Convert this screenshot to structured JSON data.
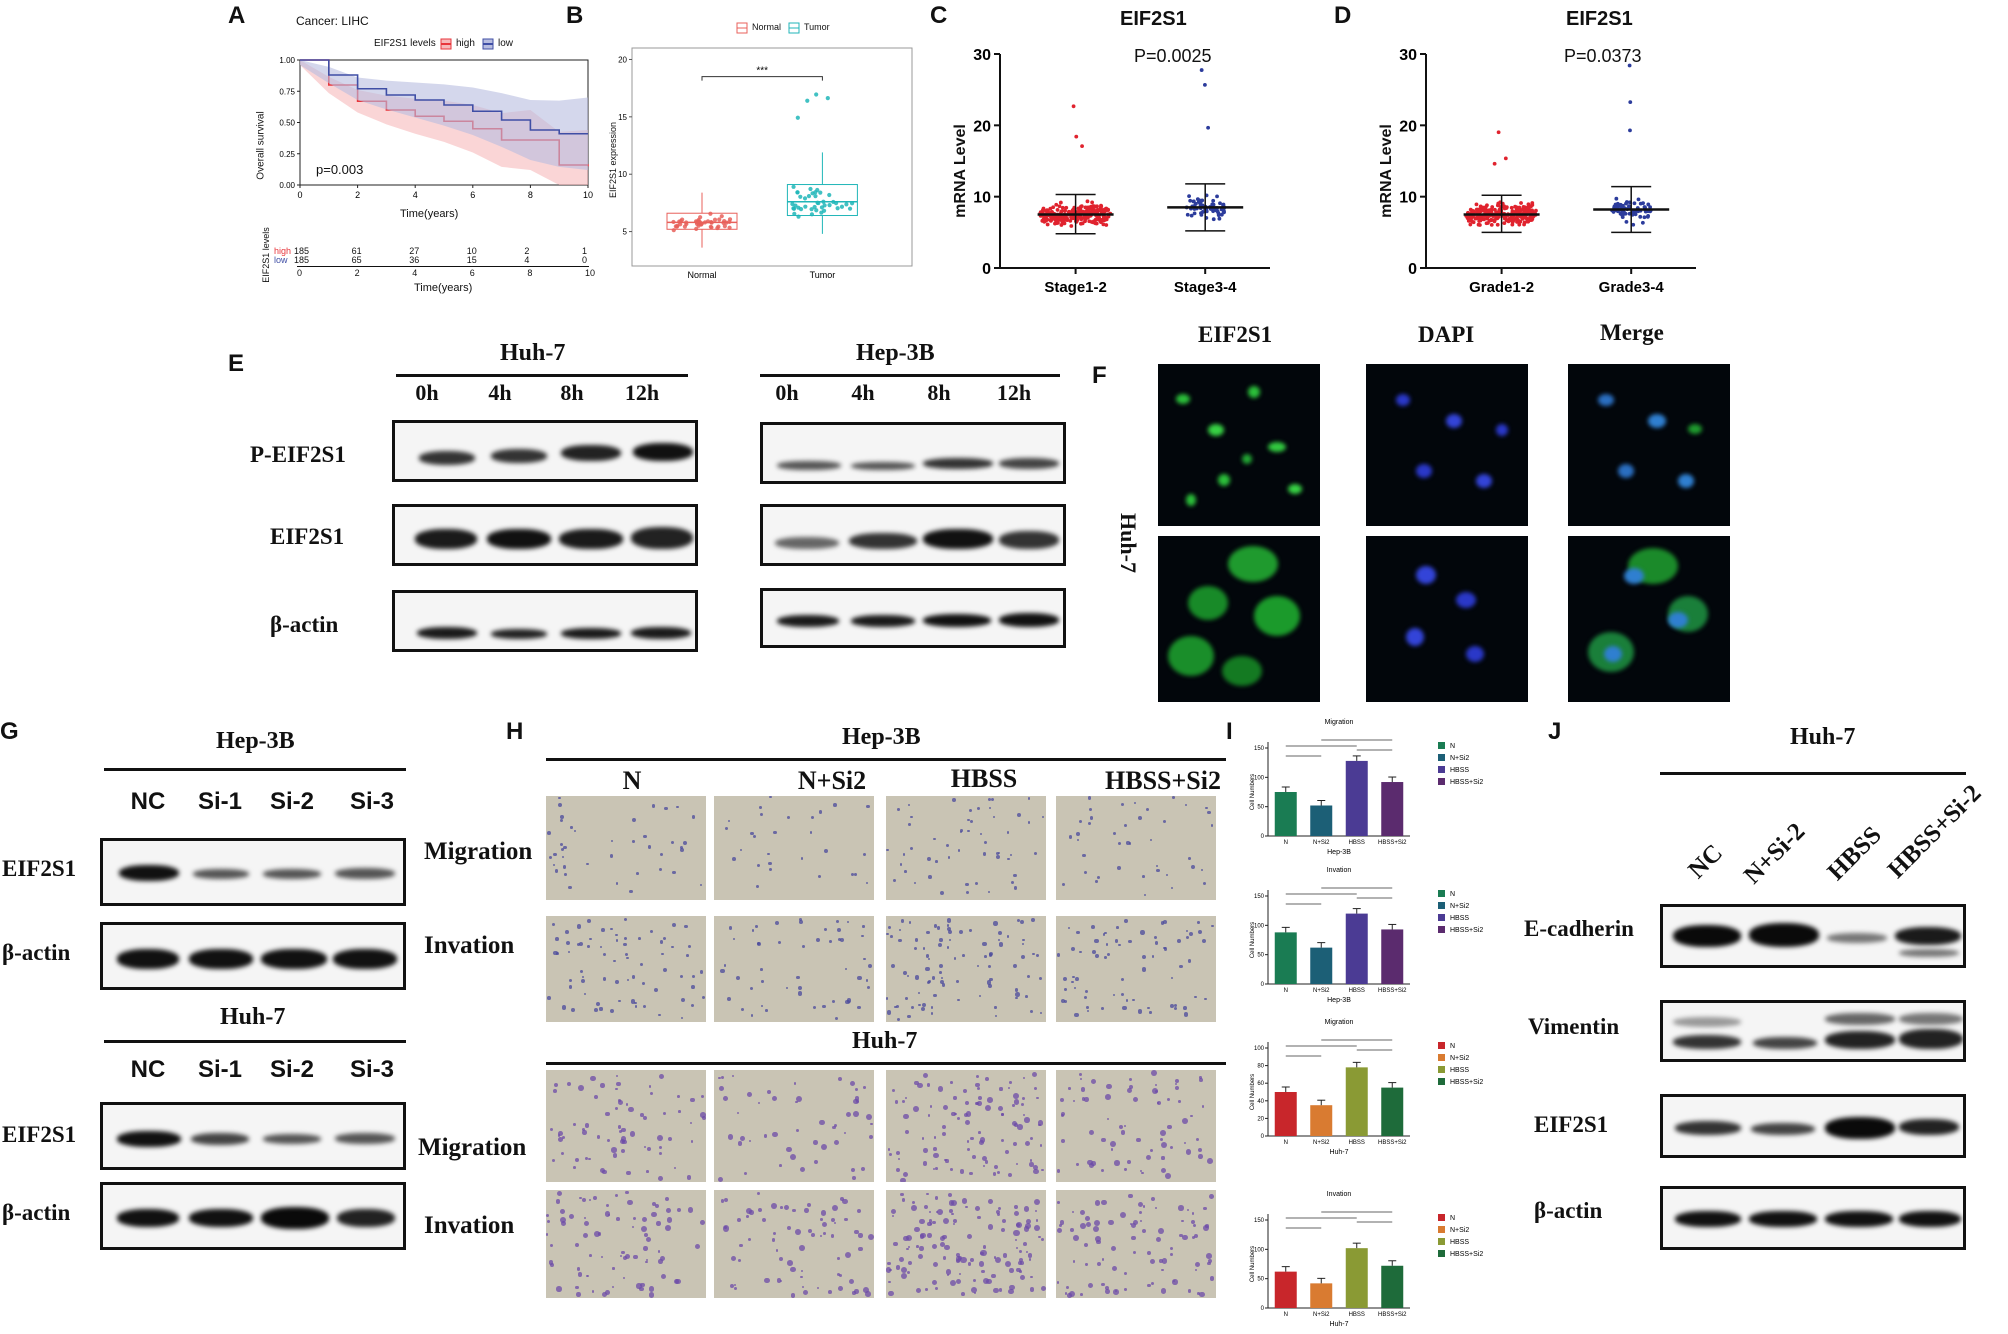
{
  "panels": {
    "A": "A",
    "B": "B",
    "C": "C",
    "D": "D",
    "E": "E",
    "F": "F",
    "G": "G",
    "H": "H",
    "I": "I",
    "J": "J"
  },
  "panelA": {
    "title": "Cancer: LIHC",
    "legend_title": "EIF2S1 levels",
    "legend": [
      "high",
      "low"
    ],
    "ylabel": "Overall survival",
    "xlabel": "Time(years)",
    "pvalue": "p=0.003",
    "yticks": [
      "0.00",
      "0.25",
      "0.50",
      "0.75",
      "1.00"
    ],
    "xticks": [
      "0",
      "2",
      "4",
      "6",
      "8",
      "10"
    ],
    "risk_label": "EIF2S1 levels",
    "risk_rows": [
      {
        "name": "high",
        "values": [
          "185",
          "61",
          "27",
          "10",
          "2",
          "1"
        ]
      },
      {
        "name": "low",
        "values": [
          "185",
          "65",
          "36",
          "15",
          "4",
          "0"
        ]
      }
    ],
    "risk_xlabel": "Time(years)"
  },
  "panelB": {
    "legend": [
      "Normal",
      "Tumor"
    ],
    "ylabel": "EIF2S1 expression",
    "yticks": [
      "5",
      "10",
      "15",
      "20"
    ],
    "categories": [
      "Normal",
      "Tumor"
    ],
    "sig": "***"
  },
  "panelC": {
    "title": "EIF2S1",
    "pvalue": "P=0.0025",
    "ylabel": "mRNA Level",
    "yticks": [
      "0",
      "10",
      "20",
      "30"
    ],
    "categories": [
      "Stage1-2",
      "Stage3-4"
    ]
  },
  "panelD": {
    "title": "EIF2S1",
    "pvalue": "P=0.0373",
    "ylabel": "mRNA Level",
    "yticks": [
      "0",
      "10",
      "20",
      "30"
    ],
    "categories": [
      "Grade1-2",
      "Grade3-4"
    ]
  },
  "panelE": {
    "groups": [
      {
        "cell": "Huh-7",
        "lanes": [
          "0h",
          "4h",
          "8h",
          "12h"
        ]
      },
      {
        "cell": "Hep-3B",
        "lanes": [
          "0h",
          "4h",
          "8h",
          "12h"
        ]
      }
    ],
    "rows": [
      "P-EIF2S1",
      "EIF2S1",
      "β-actin"
    ]
  },
  "panelF": {
    "columns": [
      "EIF2S1",
      "DAPI",
      "Merge"
    ],
    "side_label": "Huh-7"
  },
  "panelG": {
    "groups": [
      {
        "cell": "Hep-3B",
        "lanes": [
          "NC",
          "Si-1",
          "Si-2",
          "Si-3"
        ]
      },
      {
        "cell": "Huh-7",
        "lanes": [
          "NC",
          "Si-1",
          "Si-2",
          "Si-3"
        ]
      }
    ],
    "rows": [
      "EIF2S1",
      "β-actin"
    ]
  },
  "panelH": {
    "columns": [
      "N",
      "N+Si2",
      "HBSS",
      "HBSS+Si2"
    ],
    "groups": [
      {
        "cell": "Hep-3B"
      },
      {
        "cell": "Huh-7"
      }
    ],
    "rows": [
      "Migration",
      "Invation"
    ]
  },
  "panelI": {
    "charts": [
      {
        "title": "Migration",
        "cell": "Hep-3B"
      },
      {
        "title": "Invation",
        "cell": "Hep-3B"
      },
      {
        "title": "Migration",
        "cell": "Huh-7"
      },
      {
        "title": "Invation",
        "cell": "Huh-7"
      }
    ],
    "ylabel": "Cell Numbers",
    "legend": [
      "N",
      "N+Si2",
      "HBSS",
      "HBSS+Si2"
    ]
  },
  "panelJ": {
    "cell": "Huh-7",
    "lanes": [
      "NC",
      "N+Si-2",
      "HBSS",
      "HBSS+Si-2"
    ],
    "rows": [
      "E-cadherin",
      "Vimentin",
      "EIF2S1",
      "β-actin"
    ]
  },
  "colors": {
    "high": "#e8363c",
    "low": "#3f4ea5",
    "normal": "#e8605b",
    "tumor": "#20b6b8",
    "stage_low": "#e0232e",
    "stage_high": "#2c3c9c"
  },
  "chart_data": [
    {
      "type": "line",
      "title": "Cancer: LIHC",
      "xlabel": "Time(years)",
      "ylabel": "Overall survival",
      "xlim": [
        0,
        10
      ],
      "ylim": [
        0,
        1
      ],
      "series": [
        {
          "name": "high",
          "x": [
            0,
            1,
            2,
            3,
            4,
            5,
            6,
            7,
            8,
            9,
            10
          ],
          "values": [
            1.0,
            0.8,
            0.67,
            0.6,
            0.55,
            0.51,
            0.45,
            0.36,
            0.36,
            0.16,
            0.15
          ]
        },
        {
          "name": "low",
          "x": [
            0,
            1,
            2,
            3,
            4,
            5,
            6,
            7,
            8,
            9,
            10
          ],
          "values": [
            1.0,
            0.88,
            0.77,
            0.72,
            0.68,
            0.64,
            0.59,
            0.52,
            0.44,
            0.41,
            0.41
          ]
        }
      ],
      "pvalue": "p=0.003"
    },
    {
      "type": "bar",
      "categories": [
        "Normal",
        "Tumor"
      ],
      "series": [
        {
          "name": "median",
          "values": [
            5.8,
            7.6
          ]
        },
        {
          "name": "q1",
          "values": [
            5.2,
            6.4
          ]
        },
        {
          "name": "q3",
          "values": [
            6.6,
            9.1
          ]
        }
      ],
      "ylabel": "EIF2S1 expression",
      "ylim": [
        2,
        21
      ]
    },
    {
      "type": "scatter",
      "title": "EIF2S1",
      "ylabel": "mRNA Level",
      "ylim": [
        0,
        30
      ],
      "categories": [
        "Stage1-2",
        "Stage3-4"
      ],
      "series": [
        {
          "name": "mean",
          "values": [
            7.5,
            8.5
          ]
        },
        {
          "name": "sd_upper",
          "values": [
            10.3,
            11.8
          ]
        },
        {
          "name": "sd_lower",
          "values": [
            4.8,
            5.2
          ]
        }
      ],
      "pvalue": "P=0.0025"
    },
    {
      "type": "scatter",
      "title": "EIF2S1",
      "ylabel": "mRNA Level",
      "ylim": [
        0,
        30
      ],
      "categories": [
        "Grade1-2",
        "Grade3-4"
      ],
      "series": [
        {
          "name": "mean",
          "values": [
            7.5,
            8.2
          ]
        },
        {
          "name": "sd_upper",
          "values": [
            10.2,
            11.4
          ]
        },
        {
          "name": "sd_lower",
          "values": [
            5.0,
            5.0
          ]
        }
      ],
      "pvalue": "P=0.0373"
    },
    {
      "type": "bar",
      "title": "Migration",
      "xlabel": "Hep-3B",
      "ylabel": "Cell Numbers",
      "categories": [
        "N",
        "N+Si2",
        "HBSS",
        "HBSS+Si2"
      ],
      "values": [
        75,
        52,
        128,
        92
      ],
      "ylim": [
        0,
        150
      ]
    },
    {
      "type": "bar",
      "title": "Invation",
      "xlabel": "Hep-3B",
      "ylabel": "Cell Numbers",
      "categories": [
        "N",
        "N+Si2",
        "HBSS",
        "HBSS+Si2"
      ],
      "values": [
        88,
        62,
        120,
        93
      ],
      "ylim": [
        0,
        150
      ]
    },
    {
      "type": "bar",
      "title": "Migration",
      "xlabel": "Huh-7",
      "ylabel": "Cell Numbers",
      "categories": [
        "N",
        "N+Si2",
        "HBSS",
        "HBSS+Si2"
      ],
      "values": [
        50,
        35,
        78,
        55
      ],
      "ylim": [
        0,
        100
      ]
    },
    {
      "type": "bar",
      "title": "Invation",
      "xlabel": "Huh-7",
      "ylabel": "Cell Numbers",
      "categories": [
        "N",
        "N+Si2",
        "HBSS",
        "HBSS+Si2"
      ],
      "values": [
        62,
        42,
        102,
        72
      ],
      "ylim": [
        0,
        150
      ]
    }
  ]
}
